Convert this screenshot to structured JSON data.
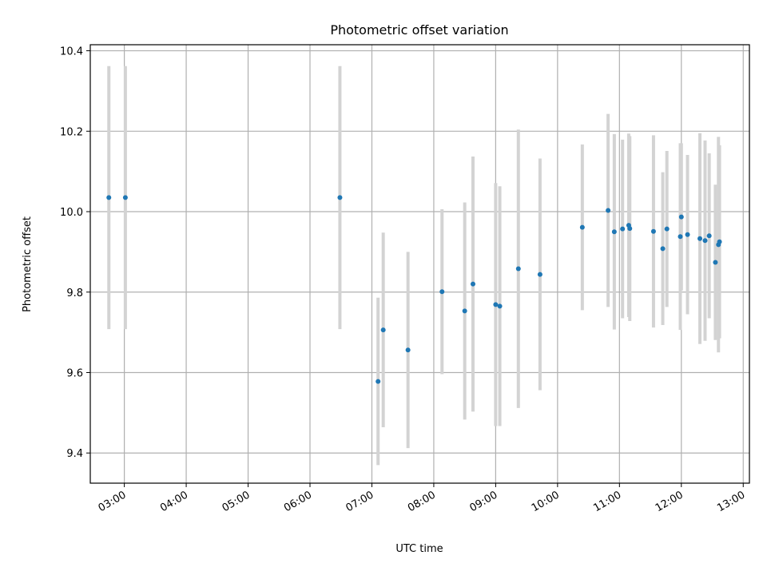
{
  "chart_data": {
    "type": "scatter",
    "title": "Photometric offset variation",
    "xlabel": "UTC time",
    "ylabel": "Photometric offset",
    "xlim": [
      "02:27",
      "13:06"
    ],
    "ylim": [
      9.325,
      10.415
    ],
    "grid": true,
    "x_ticks": [
      "03:00",
      "04:00",
      "05:00",
      "06:00",
      "07:00",
      "08:00",
      "09:00",
      "10:00",
      "11:00",
      "12:00",
      "13:00"
    ],
    "y_ticks": [
      9.4,
      9.6,
      9.8,
      10.0,
      10.2,
      10.4
    ],
    "y_tick_labels": [
      "9.4",
      "9.6",
      "9.8",
      "10.0",
      "10.2",
      "10.4"
    ],
    "point_color": "#1f77b4",
    "errorbar_color": "#d3d3d3",
    "series": [
      {
        "points": [
          {
            "x": "02:45",
            "y": 10.035,
            "err": 0.327
          },
          {
            "x": "03:01",
            "y": 10.035,
            "err": 0.327
          },
          {
            "x": "06:29",
            "y": 10.035,
            "err": 0.327
          },
          {
            "x": "07:06",
            "y": 9.578,
            "err": 0.208
          },
          {
            "x": "07:11",
            "y": 9.706,
            "err": 0.242
          },
          {
            "x": "07:35",
            "y": 9.656,
            "err": 0.244
          },
          {
            "x": "08:08",
            "y": 9.801,
            "err": 0.205
          },
          {
            "x": "08:30",
            "y": 9.753,
            "err": 0.27
          },
          {
            "x": "08:38",
            "y": 9.82,
            "err": 0.317
          },
          {
            "x": "09:00",
            "y": 9.769,
            "err": 0.302
          },
          {
            "x": "09:04",
            "y": 9.765,
            "err": 0.298
          },
          {
            "x": "09:22",
            "y": 9.858,
            "err": 0.346
          },
          {
            "x": "09:43",
            "y": 9.844,
            "err": 0.288
          },
          {
            "x": "10:24",
            "y": 9.961,
            "err": 0.206
          },
          {
            "x": "10:49",
            "y": 10.003,
            "err": 0.24
          },
          {
            "x": "10:55",
            "y": 9.95,
            "err": 0.243
          },
          {
            "x": "11:03",
            "y": 9.957,
            "err": 0.222
          },
          {
            "x": "11:09",
            "y": 9.966,
            "err": 0.228
          },
          {
            "x": "11:10",
            "y": 9.958,
            "err": 0.23
          },
          {
            "x": "11:33",
            "y": 9.951,
            "err": 0.239
          },
          {
            "x": "11:42",
            "y": 9.908,
            "err": 0.19
          },
          {
            "x": "11:46",
            "y": 9.957,
            "err": 0.194
          },
          {
            "x": "11:59",
            "y": 9.938,
            "err": 0.232
          },
          {
            "x": "12:00",
            "y": 9.987,
            "err": 0.183
          },
          {
            "x": "12:06",
            "y": 9.943,
            "err": 0.198
          },
          {
            "x": "12:18",
            "y": 9.933,
            "err": 0.262
          },
          {
            "x": "12:23",
            "y": 9.928,
            "err": 0.249
          },
          {
            "x": "12:27",
            "y": 9.94,
            "err": 0.205
          },
          {
            "x": "12:33",
            "y": 9.874,
            "err": 0.193
          },
          {
            "x": "12:36",
            "y": 9.918,
            "err": 0.268
          },
          {
            "x": "12:37",
            "y": 9.925,
            "err": 0.24
          }
        ]
      }
    ]
  }
}
